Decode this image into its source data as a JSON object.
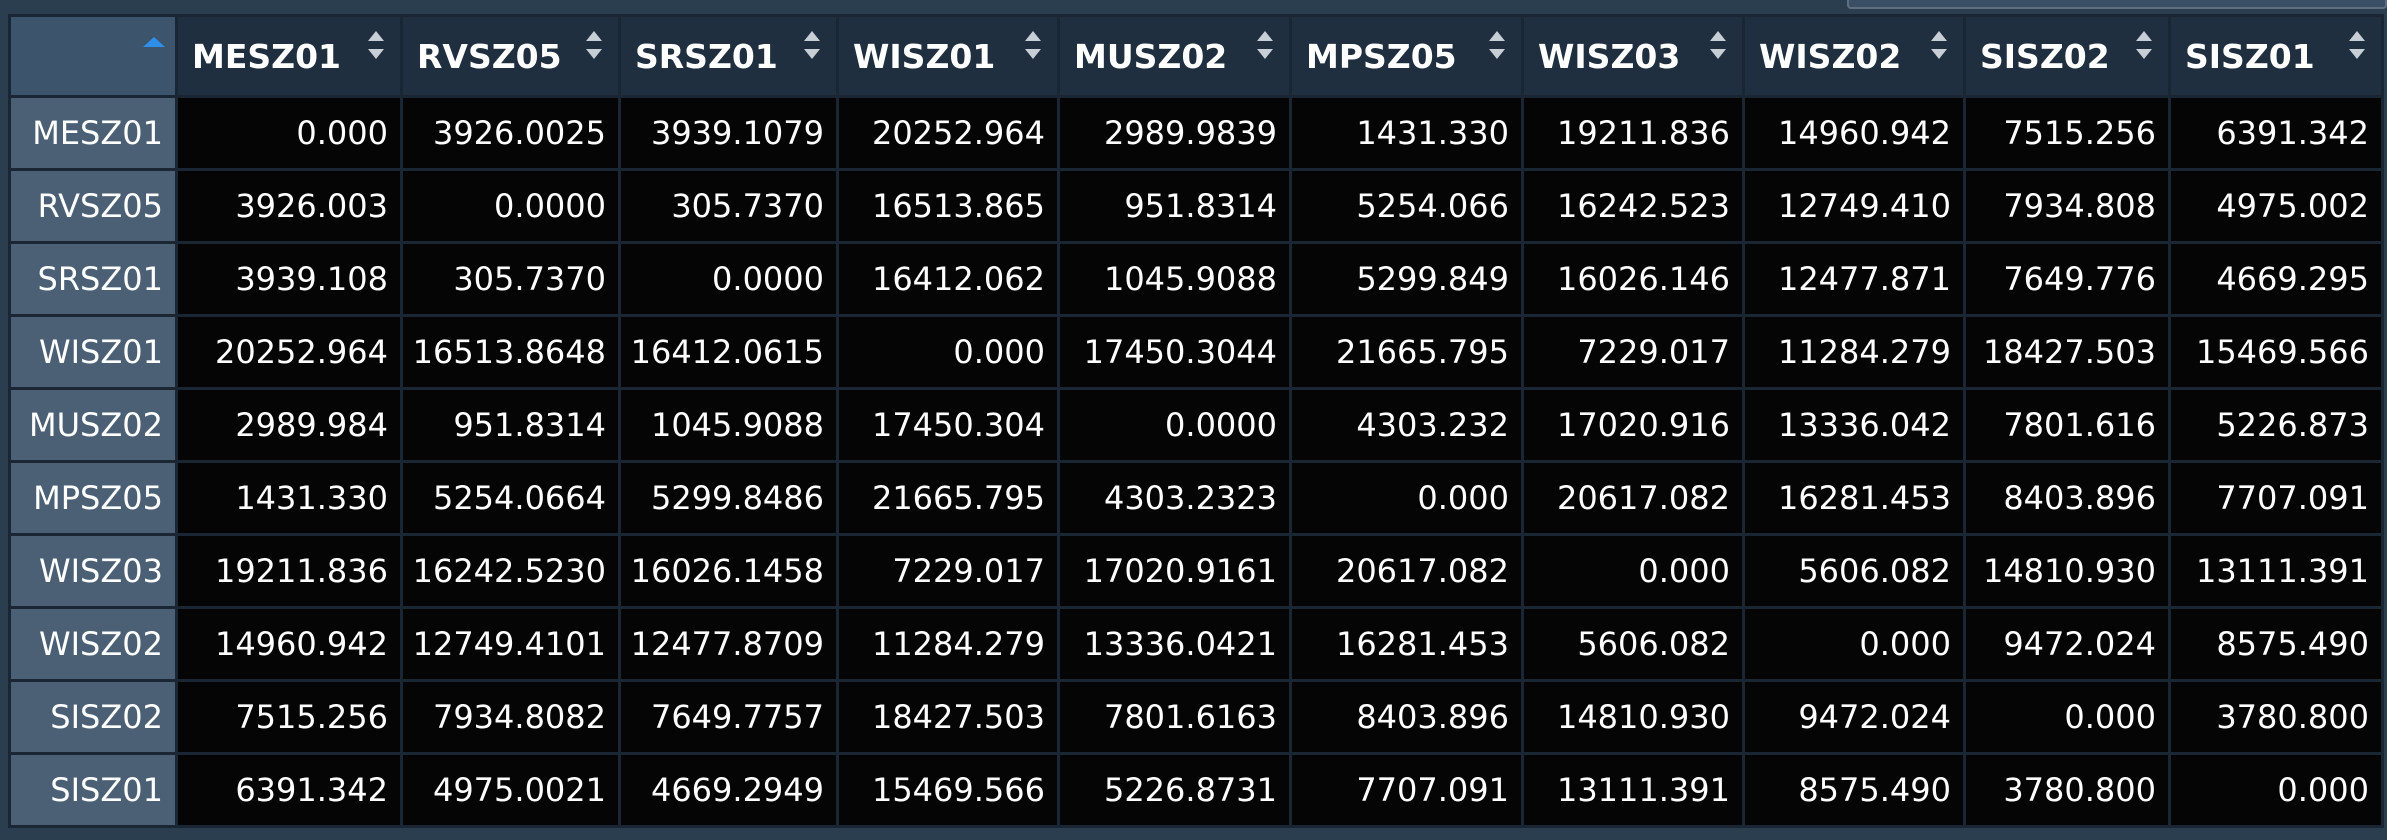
{
  "table": {
    "columns": [
      "MESZ01",
      "RVSZ05",
      "SRSZ01",
      "WISZ01",
      "MUSZ02",
      "MPSZ05",
      "WISZ03",
      "WISZ02",
      "SISZ02",
      "SISZ01"
    ],
    "rows": [
      {
        "label": "MESZ01",
        "values": [
          "0.000",
          "3926.0025",
          "3939.1079",
          "20252.964",
          "2989.9839",
          "1431.330",
          "19211.836",
          "14960.942",
          "7515.256",
          "6391.342"
        ]
      },
      {
        "label": "RVSZ05",
        "values": [
          "3926.003",
          "0.0000",
          "305.7370",
          "16513.865",
          "951.8314",
          "5254.066",
          "16242.523",
          "12749.410",
          "7934.808",
          "4975.002"
        ]
      },
      {
        "label": "SRSZ01",
        "values": [
          "3939.108",
          "305.7370",
          "0.0000",
          "16412.062",
          "1045.9088",
          "5299.849",
          "16026.146",
          "12477.871",
          "7649.776",
          "4669.295"
        ]
      },
      {
        "label": "WISZ01",
        "values": [
          "20252.964",
          "16513.8648",
          "16412.0615",
          "0.000",
          "17450.3044",
          "21665.795",
          "7229.017",
          "11284.279",
          "18427.503",
          "15469.566"
        ]
      },
      {
        "label": "MUSZ02",
        "values": [
          "2989.984",
          "951.8314",
          "1045.9088",
          "17450.304",
          "0.0000",
          "4303.232",
          "17020.916",
          "13336.042",
          "7801.616",
          "5226.873"
        ]
      },
      {
        "label": "MPSZ05",
        "values": [
          "1431.330",
          "5254.0664",
          "5299.8486",
          "21665.795",
          "4303.2323",
          "0.000",
          "20617.082",
          "16281.453",
          "8403.896",
          "7707.091"
        ]
      },
      {
        "label": "WISZ03",
        "values": [
          "19211.836",
          "16242.5230",
          "16026.1458",
          "7229.017",
          "17020.9161",
          "20617.082",
          "0.000",
          "5606.082",
          "14810.930",
          "13111.391"
        ]
      },
      {
        "label": "WISZ02",
        "values": [
          "14960.942",
          "12749.4101",
          "12477.8709",
          "11284.279",
          "13336.0421",
          "16281.453",
          "5606.082",
          "0.000",
          "9472.024",
          "8575.490"
        ]
      },
      {
        "label": "SISZ02",
        "values": [
          "7515.256",
          "7934.8082",
          "7649.7757",
          "18427.503",
          "7801.6163",
          "8403.896",
          "14810.930",
          "9472.024",
          "0.000",
          "3780.800"
        ]
      },
      {
        "label": "SISZ01",
        "values": [
          "6391.342",
          "4975.0021",
          "4669.2949",
          "15469.566",
          "5226.8731",
          "7707.091",
          "13111.391",
          "8575.490",
          "3780.800",
          "0.000"
        ]
      }
    ]
  },
  "icons": {
    "corner": "sort-ascending-icon",
    "column": "sort-toggle-icon"
  },
  "colors": {
    "background": "#2b3e50",
    "header_bg": "#1f2f3f",
    "row_label_bg": "#4b6074",
    "cell_bg": "#050505",
    "text": "#ffffff",
    "sort_active": "#2f8ee8",
    "sort_inactive": "#c7ced6"
  }
}
